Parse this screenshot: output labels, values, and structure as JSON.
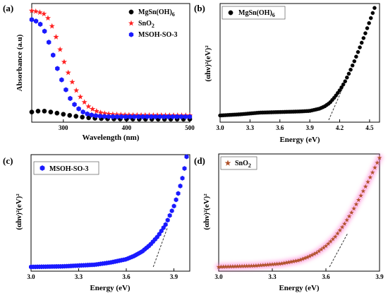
{
  "chart_data": [
    {
      "panel_label": "(a)",
      "type": "line",
      "xlabel": "Wavelength (nm)",
      "ylabel": "Absorbance (a.u)",
      "xlim": [
        250,
        500
      ],
      "ylim": [
        0,
        1
      ],
      "xticks": [
        "300",
        "400",
        "500"
      ],
      "yticks": [],
      "legend_position": "top-right",
      "series": [
        {
          "name": "MgSn(OH)",
          "name_sub": "6",
          "marker": "circle",
          "color": "#000000",
          "x": [
            250,
            260,
            265,
            270,
            280,
            290,
            300,
            310,
            320,
            330,
            340,
            350,
            360,
            370,
            380,
            400,
            420,
            450,
            480,
            500
          ],
          "y": [
            0.072,
            0.08,
            0.082,
            0.08,
            0.072,
            0.062,
            0.052,
            0.042,
            0.034,
            0.026,
            0.02,
            0.016,
            0.013,
            0.011,
            0.01,
            0.009,
            0.008,
            0.008,
            0.008,
            0.008
          ]
        },
        {
          "name": "SnO",
          "name_sub": "2",
          "marker": "star",
          "color": "#ff2222",
          "x": [
            250,
            260,
            270,
            275,
            280,
            285,
            290,
            295,
            300,
            310,
            320,
            330,
            340,
            350,
            360,
            370,
            380,
            400,
            420,
            450,
            480,
            500
          ],
          "y": [
            0.98,
            0.97,
            0.95,
            0.92,
            0.87,
            0.8,
            0.72,
            0.63,
            0.54,
            0.39,
            0.27,
            0.18,
            0.12,
            0.085,
            0.065,
            0.055,
            0.05,
            0.046,
            0.044,
            0.043,
            0.042,
            0.042
          ]
        },
        {
          "name": "MSOH-SO-3",
          "name_sub": "",
          "marker": "hexagon",
          "color": "#1a1aff",
          "x": [
            250,
            260,
            265,
            270,
            275,
            280,
            285,
            290,
            300,
            310,
            320,
            330,
            340,
            350,
            360,
            370,
            380,
            400,
            420,
            450,
            480,
            500
          ],
          "y": [
            0.9,
            0.88,
            0.85,
            0.8,
            0.73,
            0.65,
            0.56,
            0.47,
            0.32,
            0.2,
            0.12,
            0.075,
            0.05,
            0.04,
            0.034,
            0.031,
            0.03,
            0.03,
            0.03,
            0.03,
            0.03,
            0.03
          ]
        }
      ]
    },
    {
      "panel_label": "(b)",
      "type": "scatter",
      "xlabel": "Energy (eV)",
      "ylabel": "(αhν)²(eV)²",
      "xlim": [
        3.0,
        4.6
      ],
      "ylim": [
        0,
        1
      ],
      "xticks": [
        "3.0",
        "3.3",
        "3.6",
        "3.9",
        "4.2",
        "4.5"
      ],
      "legend_position": "top-left",
      "series": [
        {
          "name": "MgSn(OH)",
          "name_sub": "6",
          "marker": "circle",
          "color": "#000000",
          "x": [
            3.0,
            3.2,
            3.4,
            3.6,
            3.8,
            3.9,
            4.0,
            4.05,
            4.1,
            4.15,
            4.2,
            4.25,
            4.3,
            4.35,
            4.4,
            4.45,
            4.5,
            4.55
          ],
          "y": [
            0.04,
            0.05,
            0.065,
            0.07,
            0.075,
            0.08,
            0.1,
            0.12,
            0.15,
            0.2,
            0.26,
            0.33,
            0.42,
            0.52,
            0.63,
            0.74,
            0.86,
            0.98
          ]
        }
      ],
      "tangent": {
        "x": [
          4.09,
          4.25
        ],
        "y": [
          0.0,
          0.32
        ]
      }
    },
    {
      "panel_label": "(c)",
      "type": "scatter",
      "xlabel": "Energy (eV)",
      "ylabel": "(αhν)²(eV)²",
      "xlim": [
        3.0,
        4.0
      ],
      "ylim": [
        0,
        1
      ],
      "xticks": [
        "3.0",
        "3.3",
        "3.6",
        "3.9"
      ],
      "legend_position": "top-left",
      "series": [
        {
          "name": "MSOH-SO-3",
          "name_sub": "",
          "marker": "hexagon",
          "color": "#1a1aff",
          "x": [
            3.0,
            3.2,
            3.4,
            3.5,
            3.6,
            3.65,
            3.7,
            3.75,
            3.8,
            3.85,
            3.9,
            3.93,
            3.96,
            3.98
          ],
          "y": [
            0.0,
            0.005,
            0.02,
            0.04,
            0.07,
            0.1,
            0.14,
            0.2,
            0.28,
            0.39,
            0.55,
            0.68,
            0.84,
            1.0
          ]
        }
      ],
      "tangent": {
        "x": [
          3.77,
          3.86
        ],
        "y": [
          0.0,
          0.36
        ]
      }
    },
    {
      "panel_label": "(d)",
      "type": "scatter",
      "xlabel": "Energy (eV)",
      "ylabel": "(αhν)²(eV)²",
      "xlim": [
        3.0,
        3.9
      ],
      "ylim": [
        0,
        1
      ],
      "xticks": [
        "3.0",
        "3.3",
        "3.6",
        "3.9"
      ],
      "legend_position": "top-left",
      "series": [
        {
          "name": "SnO",
          "name_sub": "2",
          "marker": "star",
          "color": "#b0522a",
          "x": [
            3.0,
            3.2,
            3.35,
            3.45,
            3.5,
            3.55,
            3.6,
            3.65,
            3.7,
            3.75,
            3.8,
            3.85,
            3.9
          ],
          "y": [
            0.0,
            0.01,
            0.03,
            0.06,
            0.09,
            0.13,
            0.19,
            0.27,
            0.38,
            0.51,
            0.66,
            0.82,
            0.99
          ]
        }
      ],
      "tangent": {
        "x": [
          3.62,
          3.72
        ],
        "y": [
          0.0,
          0.3
        ]
      }
    }
  ]
}
